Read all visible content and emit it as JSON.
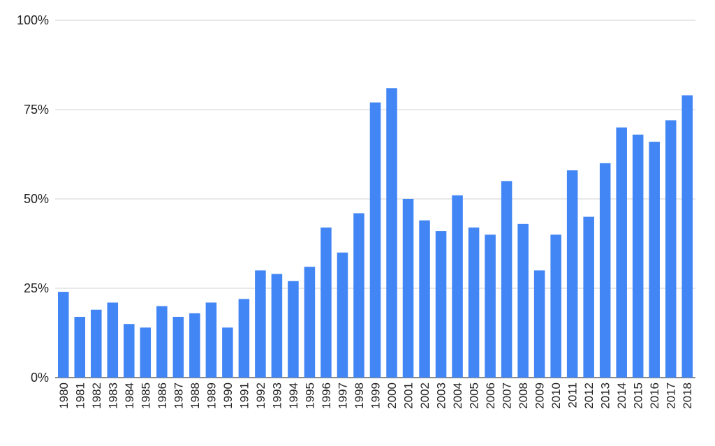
{
  "chart_data": {
    "type": "bar",
    "title": "",
    "xlabel": "",
    "ylabel": "",
    "ylim": [
      0,
      100
    ],
    "y_ticks": [
      0,
      25,
      50,
      75,
      100
    ],
    "y_tick_labels": [
      "0%",
      "25%",
      "50%",
      "75%",
      "100%"
    ],
    "grid": true,
    "legend": "none",
    "bar_color": "#4285f4",
    "categories": [
      "1980",
      "1981",
      "1982",
      "1983",
      "1984",
      "1985",
      "1986",
      "1987",
      "1988",
      "1989",
      "1990",
      "1991",
      "1992",
      "1993",
      "1994",
      "1995",
      "1996",
      "1997",
      "1998",
      "1999",
      "2000",
      "2001",
      "2002",
      "2003",
      "2004",
      "2005",
      "2006",
      "2007",
      "2008",
      "2009",
      "2010",
      "2011",
      "2012",
      "2013",
      "2014",
      "2015",
      "2016",
      "2017",
      "2018"
    ],
    "values": [
      24,
      17,
      19,
      21,
      15,
      14,
      20,
      17,
      18,
      21,
      14,
      22,
      30,
      29,
      27,
      31,
      42,
      35,
      46,
      77,
      81,
      50,
      44,
      41,
      51,
      42,
      40,
      55,
      43,
      30,
      40,
      58,
      45,
      60,
      70,
      68,
      66,
      72,
      79
    ]
  }
}
